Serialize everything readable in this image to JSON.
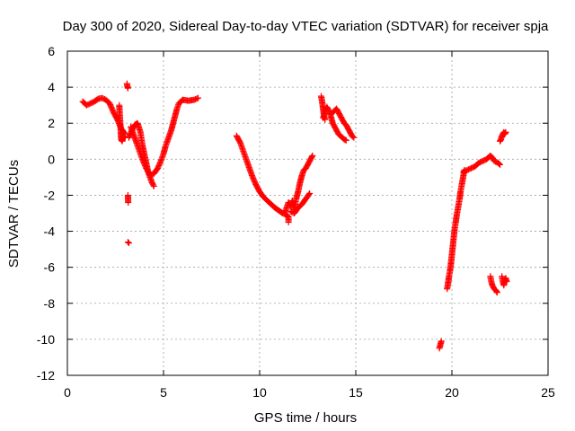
{
  "chart_data": {
    "type": "scatter",
    "title": "Day 300 of 2020, Sidereal Day-to-day VTEC variation (SDTVAR) for receiver spja",
    "xlabel": "GPS time / hours",
    "ylabel": "SDTVAR / TECUs",
    "xlim": [
      0,
      25
    ],
    "ylim": [
      -12,
      6
    ],
    "xticks": [
      0,
      5,
      10,
      15,
      20,
      25
    ],
    "yticks": [
      -12,
      -10,
      -8,
      -6,
      -4,
      -2,
      0,
      2,
      4,
      6
    ],
    "grid": true,
    "marker": "plus",
    "color": "#ff0000",
    "series": [
      {
        "name": "SDTVAR",
        "segments": [
          [
            [
              0.8,
              3.2
            ],
            [
              1.0,
              3.0
            ],
            [
              1.2,
              3.1
            ],
            [
              1.4,
              3.2
            ],
            [
              1.6,
              3.35
            ],
            [
              1.8,
              3.4
            ],
            [
              2.0,
              3.3
            ],
            [
              2.2,
              3.1
            ],
            [
              2.4,
              2.6
            ],
            [
              2.6,
              2.2
            ],
            [
              2.8,
              1.7
            ],
            [
              3.0,
              1.4
            ]
          ],
          [
            [
              2.7,
              3.0
            ],
            [
              2.72,
              2.5
            ],
            [
              2.75,
              2.0
            ],
            [
              2.78,
              1.5
            ],
            [
              2.8,
              1.1
            ],
            [
              2.85,
              1.0
            ],
            [
              2.9,
              1.3
            ],
            [
              3.0,
              1.2
            ]
          ],
          [
            [
              3.1,
              4.2
            ],
            [
              3.12,
              4.05
            ],
            [
              3.15,
              3.95
            ]
          ],
          [
            [
              3.15,
              -2.0
            ],
            [
              3.16,
              -2.4
            ]
          ],
          [
            [
              3.15,
              -4.6
            ],
            [
              3.2,
              -4.65
            ]
          ],
          [
            [
              3.2,
              1.2
            ],
            [
              3.35,
              1.6
            ],
            [
              3.5,
              1.9
            ],
            [
              3.65,
              2.0
            ],
            [
              3.8,
              1.5
            ],
            [
              3.9,
              0.8
            ],
            [
              4.0,
              0.3
            ],
            [
              4.1,
              -0.2
            ],
            [
              4.2,
              -0.7
            ],
            [
              4.3,
              -1.0
            ],
            [
              4.4,
              -1.3
            ],
            [
              4.5,
              -1.5
            ]
          ],
          [
            [
              3.3,
              1.8
            ],
            [
              3.5,
              1.2
            ],
            [
              3.7,
              0.6
            ],
            [
              3.9,
              0.0
            ],
            [
              4.1,
              -0.5
            ],
            [
              4.3,
              -0.9
            ],
            [
              4.5,
              -0.8
            ],
            [
              4.7,
              -0.5
            ],
            [
              4.9,
              0.0
            ],
            [
              5.0,
              0.3
            ],
            [
              5.1,
              0.7
            ],
            [
              5.2,
              1.0
            ],
            [
              5.3,
              1.3
            ],
            [
              5.4,
              1.6
            ],
            [
              5.5,
              2.0
            ],
            [
              5.6,
              2.4
            ],
            [
              5.7,
              2.8
            ],
            [
              5.8,
              3.1
            ],
            [
              6.0,
              3.3
            ],
            [
              6.3,
              3.25
            ],
            [
              6.6,
              3.3
            ],
            [
              6.8,
              3.4
            ]
          ],
          [
            [
              8.8,
              1.3
            ],
            [
              9.0,
              0.9
            ],
            [
              9.2,
              0.3
            ],
            [
              9.4,
              -0.3
            ],
            [
              9.6,
              -0.9
            ],
            [
              9.8,
              -1.4
            ],
            [
              10.0,
              -1.8
            ],
            [
              10.2,
              -2.1
            ],
            [
              10.4,
              -2.3
            ],
            [
              10.6,
              -2.5
            ],
            [
              10.8,
              -2.7
            ],
            [
              11.0,
              -2.85
            ],
            [
              11.2,
              -3.0
            ],
            [
              11.4,
              -3.1
            ],
            [
              11.5,
              -3.2
            ],
            [
              11.5,
              -3.5
            ]
          ],
          [
            [
              11.3,
              -3.0
            ],
            [
              11.4,
              -2.7
            ],
            [
              11.5,
              -2.4
            ],
            [
              11.6,
              -2.6
            ],
            [
              11.7,
              -2.3
            ],
            [
              11.8,
              -2.8
            ],
            [
              11.9,
              -2.2
            ],
            [
              12.0,
              -1.8
            ],
            [
              12.1,
              -1.3
            ],
            [
              12.2,
              -0.9
            ],
            [
              12.3,
              -0.6
            ],
            [
              12.4,
              -0.5
            ],
            [
              12.5,
              -0.3
            ],
            [
              12.6,
              -0.1
            ],
            [
              12.7,
              0.1
            ],
            [
              12.75,
              0.2
            ]
          ],
          [
            [
              11.6,
              -2.9
            ],
            [
              11.8,
              -3.0
            ],
            [
              12.0,
              -2.7
            ],
            [
              12.2,
              -2.5
            ],
            [
              12.4,
              -2.2
            ],
            [
              12.6,
              -1.9
            ]
          ],
          [
            [
              13.2,
              3.5
            ],
            [
              13.25,
              3.2
            ],
            [
              13.3,
              2.8
            ],
            [
              13.35,
              2.4
            ],
            [
              13.4,
              2.2
            ]
          ],
          [
            [
              13.3,
              2.3
            ],
            [
              13.4,
              2.6
            ],
            [
              13.5,
              2.9
            ],
            [
              13.6,
              2.7
            ],
            [
              13.7,
              2.4
            ],
            [
              13.8,
              2.0
            ],
            [
              13.9,
              1.8
            ],
            [
              14.0,
              1.6
            ],
            [
              14.1,
              1.4
            ],
            [
              14.2,
              1.3
            ],
            [
              14.3,
              1.2
            ],
            [
              14.4,
              1.1
            ],
            [
              14.5,
              1.05
            ]
          ],
          [
            [
              13.7,
              2.5
            ],
            [
              13.8,
              2.6
            ],
            [
              13.9,
              2.7
            ],
            [
              14.0,
              2.8
            ],
            [
              14.1,
              2.6
            ],
            [
              14.2,
              2.4
            ],
            [
              14.3,
              2.2
            ],
            [
              14.4,
              2.0
            ],
            [
              14.5,
              1.9
            ],
            [
              14.6,
              1.7
            ],
            [
              14.7,
              1.5
            ],
            [
              14.8,
              1.3
            ],
            [
              14.9,
              1.2
            ]
          ],
          [
            [
              19.35,
              -10.5
            ],
            [
              19.4,
              -10.3
            ],
            [
              19.45,
              -10.1
            ]
          ],
          [
            [
              19.75,
              -7.2
            ],
            [
              19.8,
              -6.9
            ],
            [
              19.85,
              -6.5
            ],
            [
              19.9,
              -6.2
            ],
            [
              19.95,
              -5.8
            ],
            [
              20.0,
              -5.3
            ],
            [
              20.05,
              -4.8
            ],
            [
              20.1,
              -4.3
            ],
            [
              20.15,
              -3.8
            ],
            [
              20.2,
              -3.5
            ],
            [
              20.25,
              -3.1
            ],
            [
              20.3,
              -2.8
            ],
            [
              20.35,
              -2.5
            ],
            [
              20.4,
              -2.2
            ],
            [
              20.45,
              -1.8
            ],
            [
              20.5,
              -1.5
            ],
            [
              20.55,
              -1.2
            ],
            [
              20.6,
              -0.9
            ],
            [
              20.65,
              -0.6
            ]
          ],
          [
            [
              20.6,
              -0.7
            ],
            [
              20.8,
              -0.6
            ],
            [
              21.0,
              -0.5
            ],
            [
              21.2,
              -0.4
            ],
            [
              21.4,
              -0.2
            ],
            [
              21.6,
              -0.1
            ],
            [
              21.8,
              0.0
            ],
            [
              22.0,
              0.2
            ],
            [
              22.1,
              0.1
            ],
            [
              22.2,
              -0.1
            ],
            [
              22.4,
              -0.2
            ],
            [
              22.5,
              -0.3
            ]
          ],
          [
            [
              22.0,
              -6.5
            ],
            [
              22.05,
              -6.8
            ],
            [
              22.1,
              -7.0
            ],
            [
              22.2,
              -7.2
            ],
            [
              22.3,
              -7.3
            ],
            [
              22.35,
              -7.4
            ]
          ],
          [
            [
              22.6,
              -6.5
            ],
            [
              22.65,
              -6.8
            ],
            [
              22.7,
              -7.0
            ],
            [
              22.75,
              -6.7
            ],
            [
              22.8,
              -6.6
            ],
            [
              22.85,
              -6.8
            ]
          ],
          [
            [
              22.5,
              1.0
            ],
            [
              22.55,
              1.1
            ],
            [
              22.6,
              1.3
            ],
            [
              22.7,
              1.5
            ],
            [
              22.75,
              1.4
            ],
            [
              22.8,
              1.5
            ]
          ]
        ]
      }
    ]
  }
}
